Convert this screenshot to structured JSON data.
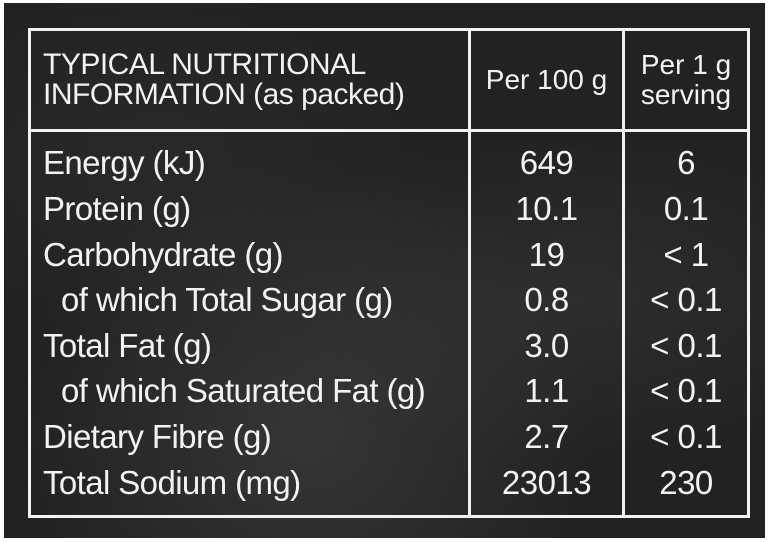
{
  "header": {
    "title_line1": "TYPICAL NUTRITIONAL",
    "title_line2": "INFORMATION",
    "title_line2_suffix": "(as packed)",
    "col_per_100g": "Per 100 g",
    "col_per_1g_line1": "Per 1 g",
    "col_per_1g_line2": "serving"
  },
  "rows": [
    {
      "name": "Energy (kJ)",
      "per_100g": "649",
      "per_1g": "6"
    },
    {
      "name": "Protein (g)",
      "per_100g": "10.1",
      "per_1g": "0.1"
    },
    {
      "name": "Carbohydrate (g)",
      "per_100g": "19",
      "per_1g": "< 1"
    },
    {
      "name": "of which Total Sugar (g)",
      "per_100g": "0.8",
      "per_1g": "< 0.1"
    },
    {
      "name": "Total Fat (g)",
      "per_100g": "3.0",
      "per_1g": "< 0.1"
    },
    {
      "name": "of which Saturated Fat (g)",
      "per_100g": "1.1",
      "per_1g": "< 0.1"
    },
    {
      "name": "Dietary Fibre (g)",
      "per_100g": "2.7",
      "per_1g": "< 0.1"
    },
    {
      "name": "Total Sodium (mg)",
      "per_100g": "23013",
      "per_1g": "230"
    }
  ]
}
